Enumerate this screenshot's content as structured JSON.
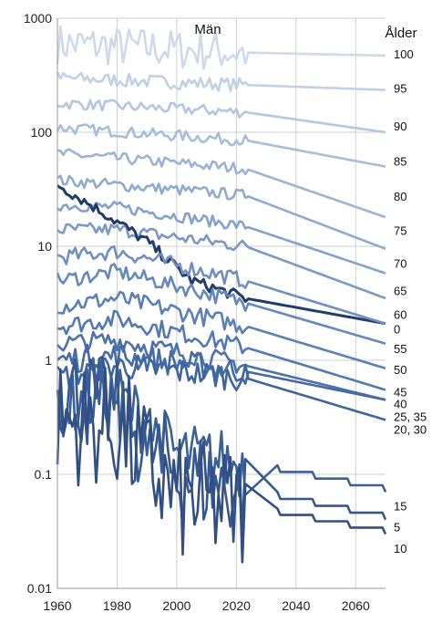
{
  "chart_data": {
    "type": "line",
    "title": "Män",
    "legend_title": "Ålder",
    "y_scale": "log",
    "xlim": [
      1960,
      2070
    ],
    "ylim": [
      0.01,
      1000
    ],
    "x_ticks": [
      "1960",
      "1980",
      "2000",
      "2020",
      "2040",
      "2060"
    ],
    "y_ticks": [
      "1000",
      "100",
      "10",
      "1",
      "0.1",
      "0.01"
    ],
    "grid": "vertical and horizontal",
    "historical_end": 2023,
    "colors": {
      "light": "#c8d4e6",
      "mid": "#7b99c8",
      "dark": "#3a5c94",
      "highlight": "#1f3d6b"
    },
    "series": [
      {
        "name": "100",
        "values": [
          [
            1960,
            600
          ],
          [
            2023,
            500
          ],
          [
            2070,
            470
          ]
        ],
        "label_y": 480,
        "color": "#cfd9e9",
        "noise": 0.18,
        "smooth": true
      },
      {
        "name": "95",
        "values": [
          [
            1960,
            300
          ],
          [
            2023,
            260
          ],
          [
            2070,
            235
          ]
        ],
        "label_y": 240,
        "color": "#c2d0e5",
        "noise": 0.06
      },
      {
        "name": "90",
        "values": [
          [
            1960,
            180
          ],
          [
            2023,
            150
          ],
          [
            2070,
            100
          ]
        ],
        "label_y": 112,
        "color": "#b4c6e0",
        "noise": 0.05
      },
      {
        "name": "85",
        "values": [
          [
            1960,
            110
          ],
          [
            2023,
            85
          ],
          [
            2070,
            50
          ]
        ],
        "label_y": 55,
        "color": "#a8bcdb",
        "noise": 0.05
      },
      {
        "name": "80",
        "values": [
          [
            1960,
            65
          ],
          [
            2023,
            48
          ],
          [
            2070,
            18
          ]
        ],
        "label_y": 27,
        "color": "#9cb3d6",
        "noise": 0.05
      },
      {
        "name": "75",
        "values": [
          [
            1960,
            38
          ],
          [
            2023,
            28
          ],
          [
            2070,
            9.5
          ]
        ],
        "label_y": 13.5,
        "color": "#90aad1",
        "noise": 0.05
      },
      {
        "name": "70",
        "values": [
          [
            1960,
            23
          ],
          [
            1980,
            22
          ],
          [
            2023,
            15
          ],
          [
            2070,
            5.8
          ]
        ],
        "label_y": 7.0,
        "color": "#85a1cc",
        "noise": 0.05
      },
      {
        "name": "65",
        "values": [
          [
            1960,
            14
          ],
          [
            1980,
            14
          ],
          [
            2023,
            10
          ],
          [
            2070,
            3.5
          ]
        ],
        "label_y": 4.0,
        "color": "#7b99c8",
        "noise": 0.06
      },
      {
        "name": "60",
        "values": [
          [
            1960,
            35
          ],
          [
            1975,
            20
          ],
          [
            1990,
            11
          ],
          [
            2005,
            5.0
          ],
          [
            2023,
            3.5
          ],
          [
            2070,
            2.1
          ]
        ],
        "label_y": 2.5,
        "color": "#1f3d6b",
        "noise": 0.05,
        "width": 3
      },
      {
        "name": "0",
        "values": [
          [
            1960,
            8
          ],
          [
            1980,
            9
          ],
          [
            2023,
            5
          ],
          [
            2070,
            2.1
          ]
        ],
        "label_y": 1.85,
        "color": "#6f8fc2",
        "noise": 0.07
      },
      {
        "name": "55",
        "values": [
          [
            1960,
            5
          ],
          [
            1980,
            6
          ],
          [
            2023,
            3.2
          ],
          [
            2070,
            1.4
          ]
        ],
        "label_y": 1.25,
        "color": "#6588bd",
        "noise": 0.07
      },
      {
        "name": "50",
        "values": [
          [
            1960,
            3
          ],
          [
            1980,
            3.5
          ],
          [
            2023,
            2.0
          ],
          [
            2070,
            0.85
          ]
        ],
        "label_y": 0.82,
        "color": "#5b80b8",
        "noise": 0.08
      },
      {
        "name": "45",
        "values": [
          [
            1960,
            2
          ],
          [
            1980,
            2.3
          ],
          [
            2023,
            1.3
          ],
          [
            2070,
            0.55
          ]
        ],
        "label_y": 0.52,
        "color": "#5379b3",
        "noise": 0.08
      },
      {
        "name": "40",
        "values": [
          [
            1960,
            1.4
          ],
          [
            1980,
            1.5
          ],
          [
            2023,
            0.9
          ],
          [
            2070,
            0.45
          ]
        ],
        "label_y": 0.41,
        "color": "#4b72ad",
        "noise": 0.09
      },
      {
        "name": "25, 35",
        "values": [
          [
            1960,
            1.0
          ],
          [
            1980,
            1.1
          ],
          [
            2023,
            0.8
          ],
          [
            2070,
            0.45
          ]
        ],
        "label_y": 0.315,
        "color": "#446ba7",
        "noise": 0.12
      },
      {
        "name": "20, 30",
        "values": [
          [
            1960,
            0.7
          ],
          [
            1980,
            0.9
          ],
          [
            2023,
            0.7
          ],
          [
            2070,
            0.3
          ]
        ],
        "label_y": 0.245,
        "color": "#3f65a1",
        "noise": 0.12
      },
      {
        "name": "15",
        "values": [
          [
            1960,
            0.4
          ],
          [
            1980,
            0.5
          ],
          [
            2000,
            0.15
          ],
          [
            2023,
            0.12
          ],
          [
            2070,
            0.07
          ]
        ],
        "label_y": 0.052,
        "color": "#3a5f9b",
        "noise": 0.3,
        "step": true
      },
      {
        "name": "5",
        "values": [
          [
            1960,
            0.6
          ],
          [
            1980,
            0.35
          ],
          [
            2000,
            0.1
          ],
          [
            2023,
            0.07
          ],
          [
            2070,
            0.04
          ]
        ],
        "label_y": 0.034,
        "color": "#35598f",
        "noise": 0.45,
        "step": true
      },
      {
        "name": "10",
        "values": [
          [
            1960,
            0.3
          ],
          [
            1980,
            0.25
          ],
          [
            2000,
            0.06
          ],
          [
            2023,
            0.05
          ],
          [
            2070,
            0.03
          ]
        ],
        "label_y": 0.022,
        "color": "#314f84",
        "noise": 0.55,
        "step": true
      }
    ]
  }
}
